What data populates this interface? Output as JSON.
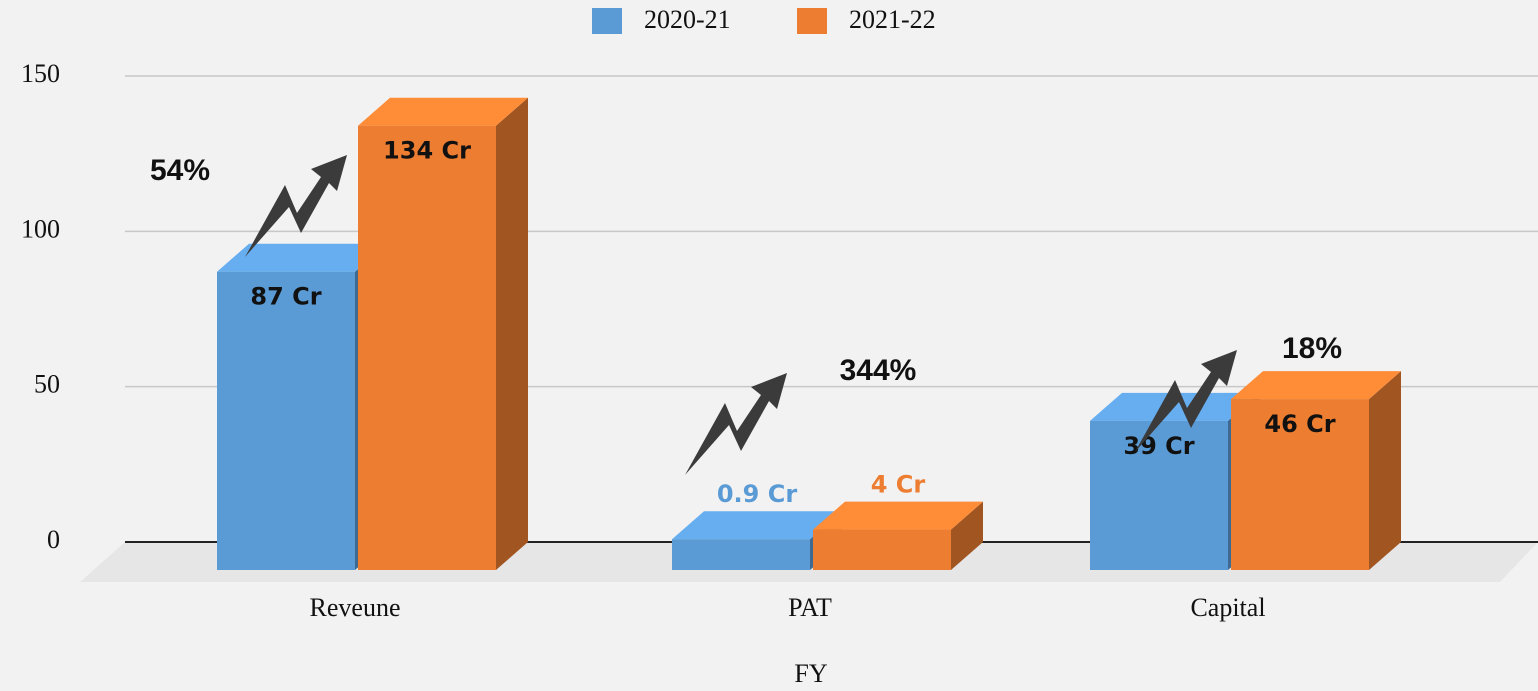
{
  "chart_data": {
    "type": "bar",
    "categories": [
      "Reveune",
      "PAT",
      "Capital"
    ],
    "series": [
      {
        "name": "2020-21",
        "color": "#5b9bd5",
        "values": [
          87,
          0.9,
          39
        ],
        "value_labels": [
          "87 Cr",
          "0.9 Cr",
          "39 Cr"
        ]
      },
      {
        "name": "2021-22",
        "color": "#ed7d31",
        "values": [
          134,
          4,
          46
        ],
        "value_labels": [
          "134 Cr",
          "4 Cr",
          "46 Cr"
        ]
      }
    ],
    "annotations": [
      "54%",
      "344%",
      "18%"
    ],
    "x_label": "FY",
    "ylim": [
      0,
      150
    ],
    "yticks": [
      0,
      50,
      100,
      150
    ],
    "grid": true,
    "legend": "top"
  }
}
